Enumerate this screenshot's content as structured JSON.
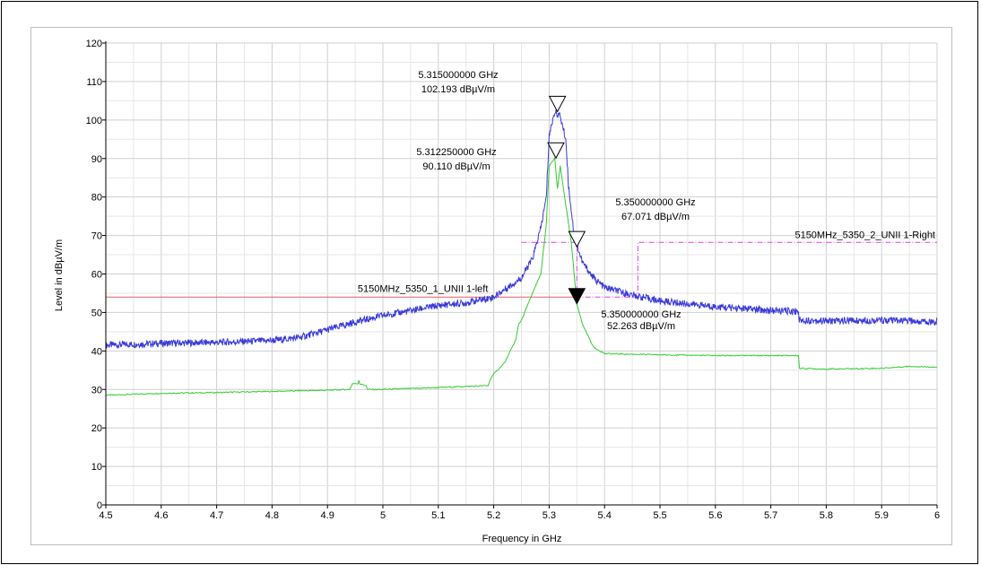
{
  "chart_data": {
    "type": "line",
    "xlabel": "Frequency in GHz",
    "ylabel": "Level in dBµV/m",
    "xlim": [
      4.5,
      6
    ],
    "ylim": [
      0,
      120
    ],
    "x_ticks": [
      "4.5",
      "4.6",
      "4.7",
      "4.8",
      "4.9",
      "5",
      "5.1",
      "5.2",
      "5.3",
      "5.4",
      "5.5",
      "5.6",
      "5.7",
      "5.8",
      "5.9",
      "6"
    ],
    "y_ticks": [
      "0",
      "10",
      "20",
      "30",
      "40",
      "50",
      "60",
      "70",
      "80",
      "90",
      "100",
      "110",
      "120"
    ],
    "grid": true,
    "series": [
      {
        "color": "#3a3adb",
        "x": [
          4.5,
          4.6,
          4.7,
          4.8,
          4.85,
          4.9,
          4.95,
          5.0,
          5.05,
          5.1,
          5.15,
          5.2,
          5.22,
          5.25,
          5.27,
          5.285,
          5.295,
          5.3,
          5.31,
          5.32,
          5.33,
          5.335,
          5.345,
          5.36,
          5.38,
          5.4,
          5.45,
          5.5,
          5.6,
          5.7,
          5.75,
          5.751,
          5.8,
          5.9,
          6.0
        ],
        "y": [
          41.5,
          42,
          42.2,
          42.7,
          43.5,
          45.5,
          47.5,
          49.2,
          50.5,
          51.8,
          52.5,
          54,
          56,
          59,
          64,
          72,
          80,
          96,
          102.2,
          101,
          95,
          83,
          70,
          63,
          59,
          56.5,
          54.5,
          53,
          51.5,
          50.5,
          50.3,
          48,
          47.8,
          48,
          47.5
        ]
      },
      {
        "color": "#33cc33",
        "x": [
          4.5,
          4.6,
          4.7,
          4.8,
          4.9,
          4.94,
          4.945,
          4.955,
          4.956,
          4.957,
          4.97,
          4.971,
          5.0,
          5.1,
          5.19,
          5.195,
          5.2,
          5.22,
          5.24,
          5.245,
          5.25,
          5.27,
          5.285,
          5.295,
          5.3,
          5.31,
          5.312,
          5.315,
          5.32,
          5.33,
          5.34,
          5.35,
          5.36,
          5.38,
          5.4,
          5.5,
          5.6,
          5.7,
          5.75,
          5.751,
          5.8,
          5.9,
          5.95,
          6.0
        ],
        "y": [
          28.5,
          29,
          29.2,
          29.5,
          29.8,
          30,
          31.5,
          31.5,
          34.5,
          31.5,
          31,
          30,
          30,
          30.5,
          31,
          33,
          34,
          37,
          43,
          47,
          48,
          55,
          60,
          73,
          88,
          90.1,
          87,
          82,
          88,
          78,
          68,
          52.3,
          47,
          41,
          39.3,
          39,
          38.8,
          38.8,
          38.8,
          35.5,
          35.3,
          35.5,
          36,
          35.8
        ]
      }
    ],
    "limit_lines": [
      {
        "name": "5150MHz_5350_1_UNII 1-left",
        "color": "#e06060",
        "style": "solid",
        "x": [
          4.5,
          4.5,
          4.5,
          5.35,
          5.35
        ],
        "y": [
          68,
          54,
          54,
          54,
          54
        ]
      },
      {
        "name": "5150MHz_5350_2_UNII 1-Right",
        "color": "#e040e0",
        "style": "dashdot",
        "x": [
          5.25,
          5.35,
          5.35,
          5.46,
          5.46,
          6.0
        ],
        "y": [
          68.2,
          68.2,
          54,
          54,
          68.2,
          68.2
        ]
      }
    ],
    "markers": [
      {
        "x": 5.315,
        "y": 102.193,
        "filled": false,
        "freq_text": "5.315000000 GHz",
        "level_text": "102.193 dBµV/m"
      },
      {
        "x": 5.31225,
        "y": 90.11,
        "filled": false,
        "freq_text": "5.312250000 GHz",
        "level_text": "90.110 dBµV/m"
      },
      {
        "x": 5.35,
        "y": 67.071,
        "filled": false,
        "freq_text": "5.350000000 GHz",
        "level_text": "67.071 dBµV/m"
      },
      {
        "x": 5.35,
        "y": 52.263,
        "filled": true,
        "freq_text": "5.350000000 GHz",
        "level_text": "52.263 dBµV/m"
      }
    ]
  }
}
